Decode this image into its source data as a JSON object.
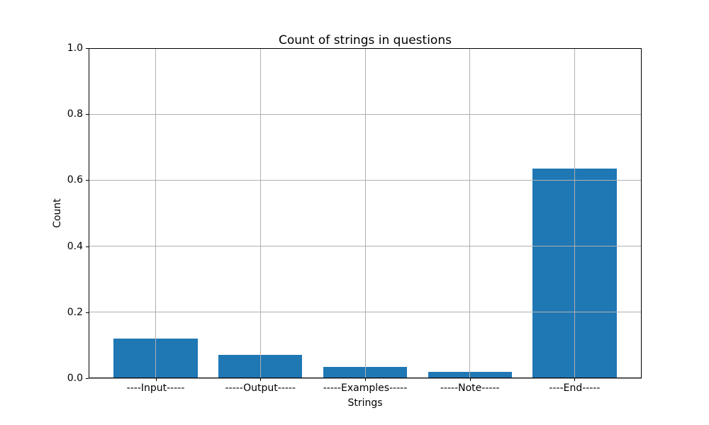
{
  "chart_data": {
    "type": "bar",
    "title": "Count of strings in questions",
    "xlabel": "Strings",
    "ylabel": "Count",
    "categories": [
      "----Input-----",
      "-----Output-----",
      "-----Examples-----",
      "-----Note-----",
      "----End-----"
    ],
    "values": [
      0.12,
      0.07,
      0.035,
      0.019,
      0.635
    ],
    "ylim": [
      0.0,
      1.0
    ],
    "ytick_labels": [
      "0.0",
      "0.2",
      "0.4",
      "0.6",
      "0.8",
      "1.0"
    ],
    "grid": true,
    "legend": null,
    "bar_color": "#1f77b4",
    "grid_color": "#b0b0b0",
    "background_color": "#ffffff"
  }
}
